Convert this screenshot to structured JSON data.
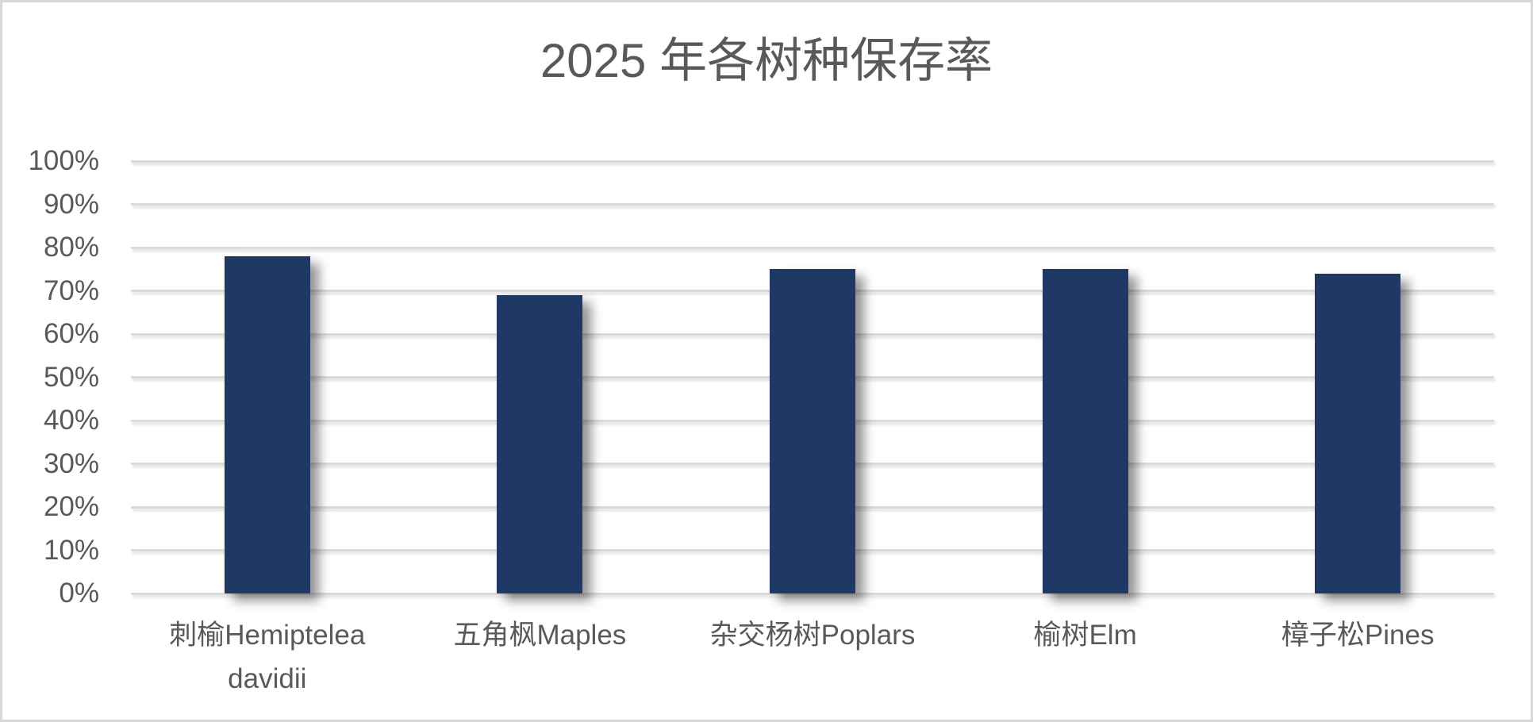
{
  "chart_data": {
    "type": "bar",
    "title": "2025 年各树种保存率",
    "categories": [
      "刺榆Hemiptelea davidii",
      "五角枫Maples",
      "杂交杨树Poplars",
      "榆树Elm",
      "樟子松Pines"
    ],
    "values": [
      78,
      69,
      75,
      75,
      74
    ],
    "value_unit": "%",
    "xlabel": "",
    "ylabel": "",
    "ylim": [
      0,
      100
    ],
    "y_ticks": [
      0,
      10,
      20,
      30,
      40,
      50,
      60,
      70,
      80,
      90,
      100
    ],
    "y_tick_labels": [
      "0%",
      "10%",
      "20%",
      "30%",
      "40%",
      "50%",
      "60%",
      "70%",
      "80%",
      "90%",
      "100%"
    ],
    "grid": "horizontal",
    "legend": "none",
    "data_labels": "none",
    "colors": {
      "bar": "#1f3864",
      "gridline": "#dbdbdb",
      "axis_text": "#595959",
      "title_text": "#595959",
      "background": "#ffffff",
      "frame_border": "#d8d8d8"
    }
  }
}
